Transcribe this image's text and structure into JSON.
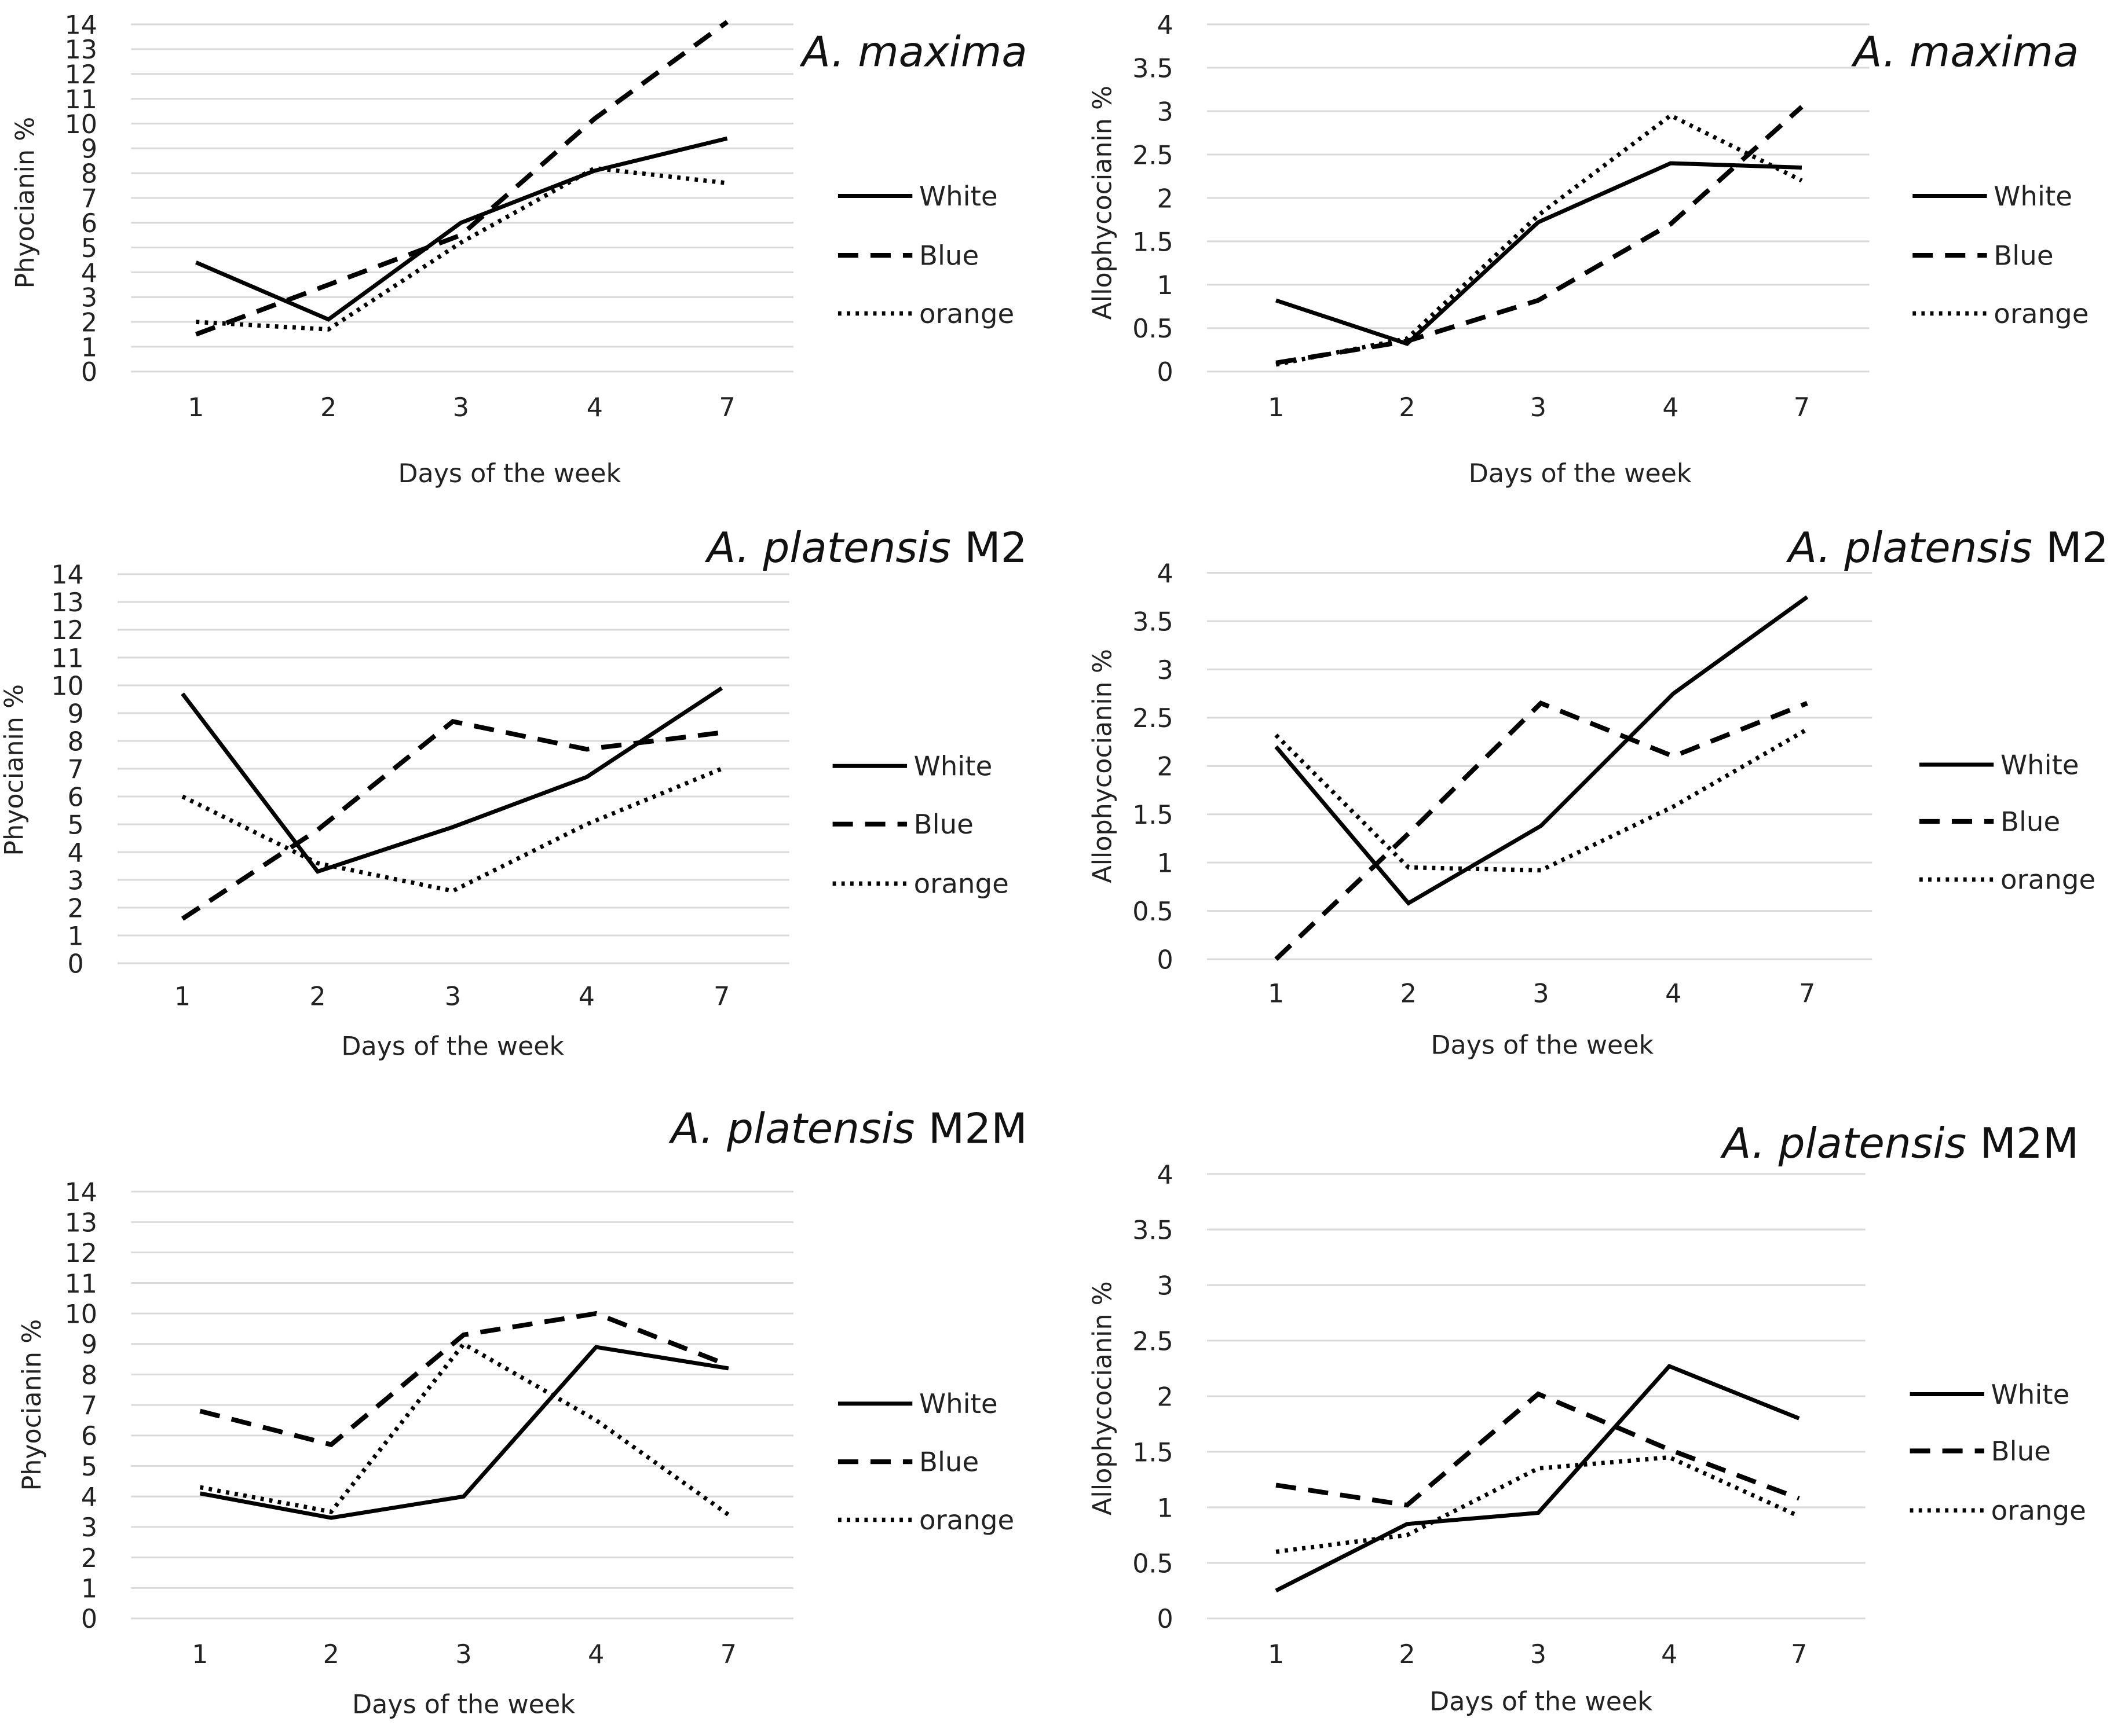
{
  "chart_data": [
    {
      "type": "line",
      "title": {
        "italic": "A. maxima",
        "suffix": ""
      },
      "xlabel": "Days of the week",
      "ylabel": "Phyocianin %",
      "categories": [
        "1",
        "2",
        "3",
        "4",
        "7"
      ],
      "ylim": [
        0,
        14
      ],
      "yticks": [
        "0",
        "1",
        "2",
        "3",
        "4",
        "5",
        "6",
        "7",
        "8",
        "9",
        "10",
        "11",
        "12",
        "13",
        "14"
      ],
      "ystep": 1,
      "grid": true,
      "legend_placement": "right",
      "series": [
        {
          "name": "White",
          "style": "solid",
          "values": [
            4.4,
            2.1,
            6.0,
            8.1,
            9.4
          ]
        },
        {
          "name": "Blue",
          "style": "dashed",
          "values": [
            1.5,
            3.5,
            5.5,
            10.2,
            14.1
          ]
        },
        {
          "name": "orange",
          "style": "dotted",
          "values": [
            2.0,
            1.7,
            5.2,
            8.2,
            7.6
          ]
        }
      ]
    },
    {
      "type": "line",
      "title": {
        "italic": "A. maxima",
        "suffix": ""
      },
      "xlabel": "Days of the week",
      "ylabel": "Allophycocianin %",
      "categories": [
        "1",
        "2",
        "3",
        "4",
        "7"
      ],
      "ylim": [
        0,
        4
      ],
      "yticks": [
        "0",
        "0.5",
        "1",
        "1.5",
        "2",
        "2.5",
        "3",
        "3.5",
        "4"
      ],
      "ystep": 0.5,
      "grid": true,
      "legend_placement": "right",
      "series": [
        {
          "name": "White",
          "style": "solid",
          "values": [
            0.82,
            0.32,
            1.72,
            2.4,
            2.35
          ]
        },
        {
          "name": "Blue",
          "style": "dashed",
          "values": [
            0.1,
            0.35,
            0.82,
            1.7,
            3.05
          ]
        },
        {
          "name": "orange",
          "style": "dotted",
          "values": [
            0.08,
            0.38,
            1.8,
            2.95,
            2.2
          ]
        }
      ]
    },
    {
      "type": "line",
      "title": {
        "italic": "A. platensis",
        "suffix": "M2"
      },
      "xlabel": "Days of the week",
      "ylabel": "Phyocianin %",
      "categories": [
        "1",
        "2",
        "3",
        "4",
        "7"
      ],
      "ylim": [
        0,
        14
      ],
      "yticks": [
        "0",
        "1",
        "2",
        "3",
        "4",
        "5",
        "6",
        "7",
        "8",
        "9",
        "10",
        "11",
        "12",
        "13",
        "14"
      ],
      "ystep": 1,
      "grid": true,
      "legend_placement": "right",
      "series": [
        {
          "name": "White",
          "style": "solid",
          "values": [
            9.7,
            3.3,
            4.9,
            6.7,
            9.9
          ]
        },
        {
          "name": "Blue",
          "style": "dashed",
          "values": [
            1.6,
            4.8,
            8.7,
            7.7,
            8.3
          ]
        },
        {
          "name": "orange",
          "style": "dotted",
          "values": [
            6.0,
            3.6,
            2.6,
            5.0,
            7.0
          ]
        }
      ]
    },
    {
      "type": "line",
      "title": {
        "italic": "A. platensis",
        "suffix": "M2"
      },
      "xlabel": "Days of the week",
      "ylabel": "Allophycocianin %",
      "categories": [
        "1",
        "2",
        "3",
        "4",
        "7"
      ],
      "ylim": [
        0,
        4
      ],
      "yticks": [
        "0",
        "0.5",
        "1",
        "1.5",
        "2",
        "2.5",
        "3",
        "3.5",
        "4"
      ],
      "ystep": 0.5,
      "grid": true,
      "legend_placement": "right",
      "series": [
        {
          "name": "White",
          "style": "solid",
          "values": [
            2.2,
            0.58,
            1.38,
            2.75,
            3.75
          ]
        },
        {
          "name": "Blue",
          "style": "dashed",
          "values": [
            0.0,
            1.3,
            2.65,
            2.1,
            2.65
          ]
        },
        {
          "name": "orange",
          "style": "dotted",
          "values": [
            2.32,
            0.95,
            0.92,
            1.58,
            2.38
          ]
        }
      ]
    },
    {
      "type": "line",
      "title": {
        "italic": "A. platensis",
        "suffix": "M2M"
      },
      "xlabel": "Days of the week",
      "ylabel": "Phyocianin %",
      "categories": [
        "1",
        "2",
        "3",
        "4",
        "7"
      ],
      "ylim": [
        0,
        14
      ],
      "yticks": [
        "0",
        "1",
        "2",
        "3",
        "4",
        "5",
        "6",
        "7",
        "8",
        "9",
        "10",
        "11",
        "12",
        "13",
        "14"
      ],
      "ystep": 1,
      "grid": true,
      "legend_placement": "right",
      "series": [
        {
          "name": "White",
          "style": "solid",
          "values": [
            4.1,
            3.3,
            4.0,
            8.9,
            8.2
          ]
        },
        {
          "name": "Blue",
          "style": "dashed",
          "values": [
            6.8,
            5.7,
            9.3,
            10.0,
            8.3
          ]
        },
        {
          "name": "orange",
          "style": "dotted",
          "values": [
            4.3,
            3.5,
            9.0,
            6.5,
            3.4
          ]
        }
      ]
    },
    {
      "type": "line",
      "title": {
        "italic": "A. platensis",
        "suffix": "M2M"
      },
      "xlabel": "Days of the week",
      "ylabel": "Allophycocianin %",
      "categories": [
        "1",
        "2",
        "3",
        "4",
        "7"
      ],
      "ylim": [
        0,
        4
      ],
      "yticks": [
        "0",
        "0.5",
        "1",
        "1.5",
        "2",
        "2.5",
        "3",
        "3.5",
        "4"
      ],
      "ystep": 0.5,
      "grid": true,
      "legend_placement": "right",
      "series": [
        {
          "name": "White",
          "style": "solid",
          "values": [
            0.25,
            0.85,
            0.95,
            2.27,
            1.8
          ]
        },
        {
          "name": "Blue",
          "style": "dashed",
          "values": [
            1.2,
            1.02,
            2.02,
            1.52,
            1.08
          ]
        },
        {
          "name": "orange",
          "style": "dotted",
          "values": [
            0.6,
            0.75,
            1.35,
            1.45,
            0.92
          ]
        }
      ]
    }
  ],
  "colors": {
    "line": "#000000",
    "grid": "#d9d9d9",
    "text": "#222222"
  }
}
